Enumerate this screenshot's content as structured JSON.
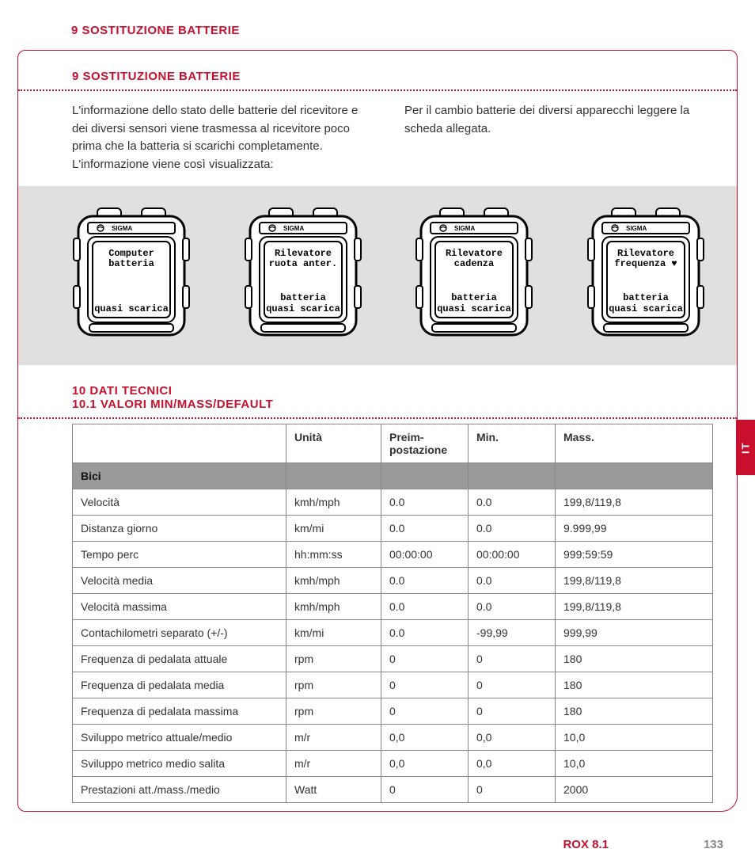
{
  "colors": {
    "accent": "#c8102e",
    "gray_band": "#e0e0e0",
    "row_section": "#9a9a9a",
    "border": "#888888",
    "text": "#333333",
    "page_num": "#888888"
  },
  "header": {
    "title": "9 SOSTITUZIONE BATTERIE"
  },
  "section9": {
    "title": "9 SOSTITUZIONE BATTERIE",
    "left_text": "L'informazione dello stato delle batterie del ricevitore e dei diversi sensori viene trasmessa al ricevitore poco prima che la batteria si scarichi completamente. L'informazione viene così visualizzata:",
    "right_text": "Per il cambio batterie dei diversi apparecchi leggere la scheda allegata."
  },
  "devices": [
    {
      "brand": "SIGMA",
      "top1": "Computer",
      "top2": "batteria",
      "bot1": "",
      "bot2": "quasi scarica"
    },
    {
      "brand": "SIGMA",
      "top1": "Rilevatore",
      "top2": "ruota anter.",
      "bot1": "batteria",
      "bot2": "quasi scarica"
    },
    {
      "brand": "SIGMA",
      "top1": "Rilevatore",
      "top2": "cadenza",
      "bot1": "batteria",
      "bot2": "quasi scarica"
    },
    {
      "brand": "SIGMA",
      "top1": "Rilevatore",
      "top2": "frequenza ♥",
      "bot1": "batteria",
      "bot2": "quasi scarica"
    }
  ],
  "section10": {
    "title1": "10 DATI TECNICI",
    "title2": "10.1 VALORI MIN/MASS/DEFAULT"
  },
  "table": {
    "columns": [
      "",
      "Unità",
      "Preim­postazione",
      "Min.",
      "Mass."
    ],
    "section_label": "Bici",
    "rows": [
      [
        "Velocità",
        "kmh/mph",
        "0.0",
        "0.0",
        "199,8/119,8"
      ],
      [
        "Distanza giorno",
        "km/mi",
        "0.0",
        "0.0",
        "9.999,99"
      ],
      [
        "Tempo perc",
        "hh:mm:ss",
        "00:00:00",
        "00:00:00",
        "999:59:59"
      ],
      [
        "Velocità media",
        "kmh/mph",
        "0.0",
        "0.0",
        "199,8/119,8"
      ],
      [
        "Velocità massima",
        "kmh/mph",
        "0.0",
        "0.0",
        "199,8/119,8"
      ],
      [
        "Contachilometri separato (+/-)",
        "km/mi",
        "0.0",
        "-99,99",
        "999,99"
      ],
      [
        "Frequenza di pedalata attuale",
        "rpm",
        "0",
        "0",
        "180"
      ],
      [
        "Frequenza di pedalata media",
        "rpm",
        "0",
        "0",
        "180"
      ],
      [
        "Frequenza di pedalata massima",
        "rpm",
        "0",
        "0",
        "180"
      ],
      [
        "Sviluppo metrico attuale/medio",
        "m/r",
        "0,0",
        "0,0",
        "10,0"
      ],
      [
        "Sviluppo metrico medio salita",
        "m/r",
        "0,0",
        "0,0",
        "10,0"
      ],
      [
        "Prestazioni att./mass./medio",
        "Watt",
        "0",
        "0",
        "2000"
      ]
    ]
  },
  "side_tab": "IT",
  "footer": {
    "product": "ROX 8.1",
    "page": "133"
  }
}
